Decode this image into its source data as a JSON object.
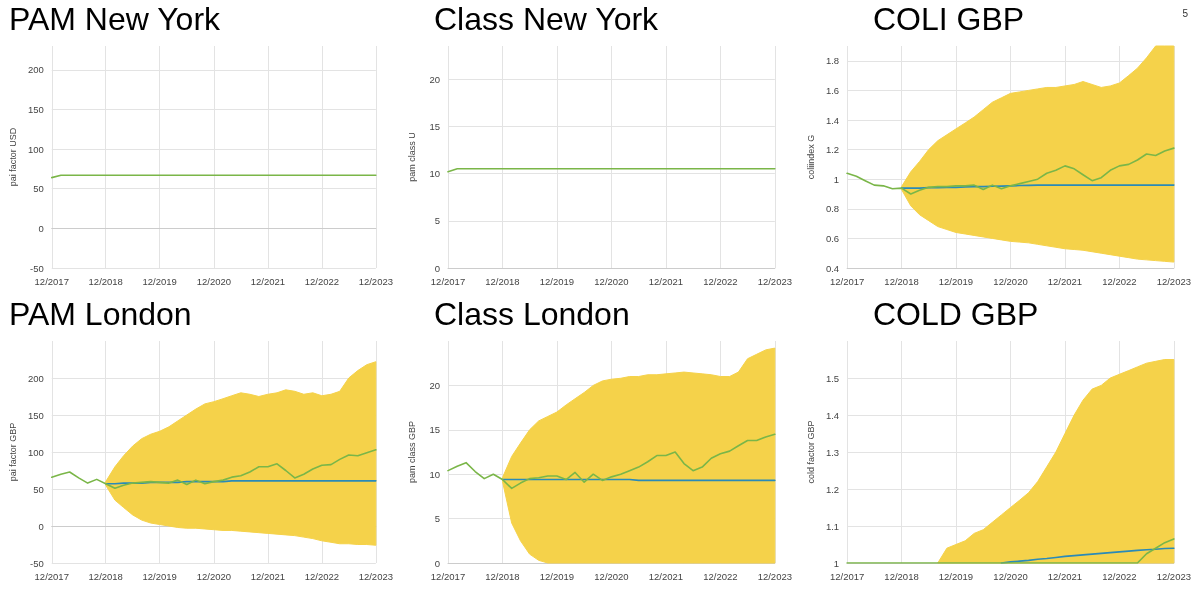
{
  "chart_data": [
    {
      "type": "line",
      "title": "PAM New York",
      "ylabel": "pai factor USD",
      "grid": true,
      "xlim": [
        "2017-12",
        "2023-12"
      ],
      "ylim": [
        -50,
        230
      ],
      "yticks": [
        -50,
        0,
        50,
        100,
        150,
        200
      ],
      "xticks": [
        {
          "value": "2017-12",
          "label": "12/2017"
        },
        {
          "value": "2018-12",
          "label": "12/2018"
        },
        {
          "value": "2019-12",
          "label": "12/2019"
        },
        {
          "value": "2020-12",
          "label": "12/2020"
        },
        {
          "value": "2021-12",
          "label": "12/2021"
        },
        {
          "value": "2022-12",
          "label": "12/2022"
        },
        {
          "value": "2023-12",
          "label": "12/2023"
        }
      ],
      "x": [
        "2017-12",
        "2018-02",
        "2018-04",
        "2018-06",
        "2018-08",
        "2018-10",
        "2018-12",
        "2019-02",
        "2019-04",
        "2019-06",
        "2019-08",
        "2019-10",
        "2019-12",
        "2020-02",
        "2020-04",
        "2020-06",
        "2020-08",
        "2020-10",
        "2020-12",
        "2021-02",
        "2021-04",
        "2021-06",
        "2021-08",
        "2021-10",
        "2021-12",
        "2022-02",
        "2022-04",
        "2022-06",
        "2022-08",
        "2022-10",
        "2022-12",
        "2023-02",
        "2023-04",
        "2023-06",
        "2023-08",
        "2023-10",
        "2023-12"
      ],
      "series": [
        {
          "color": "#7ab648",
          "values": [
            64,
            67,
            67,
            67,
            67,
            67,
            67,
            67,
            67,
            67,
            67,
            67,
            67,
            67,
            67,
            67,
            67,
            67,
            67,
            67,
            67,
            67,
            67,
            67,
            67,
            67,
            67,
            67,
            67,
            67,
            67,
            67,
            67,
            67,
            67,
            67,
            67
          ]
        }
      ]
    },
    {
      "type": "line",
      "title": "Class New York",
      "ylabel": "pam class U",
      "grid": true,
      "xlim": [
        "2017-12",
        "2023-12"
      ],
      "ylim": [
        0,
        23.5
      ],
      "yticks": [
        0,
        5,
        10,
        15,
        20
      ],
      "xticks": [
        {
          "value": "2017-12",
          "label": "12/2017"
        },
        {
          "value": "2018-12",
          "label": "12/2018"
        },
        {
          "value": "2019-12",
          "label": "12/2019"
        },
        {
          "value": "2020-12",
          "label": "12/2020"
        },
        {
          "value": "2021-12",
          "label": "12/2021"
        },
        {
          "value": "2022-12",
          "label": "12/2022"
        },
        {
          "value": "2023-12",
          "label": "12/2023"
        }
      ],
      "x": [
        "2017-12",
        "2018-02",
        "2018-04",
        "2018-06",
        "2018-08",
        "2018-10",
        "2018-12",
        "2019-02",
        "2019-04",
        "2019-06",
        "2019-08",
        "2019-10",
        "2019-12",
        "2020-02",
        "2020-04",
        "2020-06",
        "2020-08",
        "2020-10",
        "2020-12",
        "2021-02",
        "2021-04",
        "2021-06",
        "2021-08",
        "2021-10",
        "2021-12",
        "2022-02",
        "2022-04",
        "2022-06",
        "2022-08",
        "2022-10",
        "2022-12",
        "2023-02",
        "2023-04",
        "2023-06",
        "2023-08",
        "2023-10",
        "2023-12"
      ],
      "series": [
        {
          "color": "#7ab648",
          "values": [
            10.2,
            10.5,
            10.5,
            10.5,
            10.5,
            10.5,
            10.5,
            10.5,
            10.5,
            10.5,
            10.5,
            10.5,
            10.5,
            10.5,
            10.5,
            10.5,
            10.5,
            10.5,
            10.5,
            10.5,
            10.5,
            10.5,
            10.5,
            10.5,
            10.5,
            10.5,
            10.5,
            10.5,
            10.5,
            10.5,
            10.5,
            10.5,
            10.5,
            10.5,
            10.5,
            10.5,
            10.5
          ]
        }
      ]
    },
    {
      "type": "line",
      "title": "COLI GBP",
      "ylabel": "coliindex G",
      "annotations": [
        "5"
      ],
      "grid": true,
      "xlim": [
        "2017-12",
        "2023-12"
      ],
      "ylim": [
        0.4,
        1.9
      ],
      "yticks": [
        0.4,
        0.6,
        0.8,
        1,
        1.2,
        1.4,
        1.6,
        1.8
      ],
      "xticks": [
        {
          "value": "2017-12",
          "label": "12/2017"
        },
        {
          "value": "2018-12",
          "label": "12/2018"
        },
        {
          "value": "2019-12",
          "label": "12/2019"
        },
        {
          "value": "2020-12",
          "label": "12/2020"
        },
        {
          "value": "2021-12",
          "label": "12/2021"
        },
        {
          "value": "2022-12",
          "label": "12/2022"
        },
        {
          "value": "2023-12",
          "label": "12/2023"
        }
      ],
      "x": [
        "2017-12",
        "2018-02",
        "2018-04",
        "2018-06",
        "2018-08",
        "2018-10",
        "2018-12",
        "2019-02",
        "2019-04",
        "2019-06",
        "2019-08",
        "2019-10",
        "2019-12",
        "2020-02",
        "2020-04",
        "2020-06",
        "2020-08",
        "2020-10",
        "2020-12",
        "2021-02",
        "2021-04",
        "2021-06",
        "2021-08",
        "2021-10",
        "2021-12",
        "2022-02",
        "2022-04",
        "2022-06",
        "2022-08",
        "2022-10",
        "2022-12",
        "2023-02",
        "2023-04",
        "2023-06",
        "2023-08",
        "2023-10",
        "2023-12"
      ],
      "series": [
        {
          "color": "#2a8ab8",
          "values": [
            null,
            null,
            null,
            null,
            null,
            null,
            0.94,
            0.94,
            0.94,
            0.943,
            0.943,
            0.945,
            0.945,
            0.948,
            0.95,
            0.95,
            0.952,
            0.953,
            0.955,
            0.957,
            0.958,
            0.96,
            0.96,
            0.96,
            0.96,
            0.96,
            0.96,
            0.96,
            0.96,
            0.96,
            0.96,
            0.96,
            0.96,
            0.96,
            0.96,
            0.96,
            0.96
          ],
          "lower": [
            null,
            null,
            null,
            null,
            null,
            null,
            0.93,
            0.82,
            0.76,
            0.72,
            0.68,
            0.66,
            0.64,
            0.63,
            0.62,
            0.61,
            0.6,
            0.59,
            0.58,
            0.575,
            0.57,
            0.56,
            0.55,
            0.54,
            0.53,
            0.525,
            0.52,
            0.51,
            0.5,
            0.49,
            0.48,
            0.47,
            0.46,
            0.455,
            0.45,
            0.445,
            0.44
          ],
          "upper": [
            null,
            null,
            null,
            null,
            null,
            null,
            0.95,
            1.05,
            1.12,
            1.2,
            1.26,
            1.3,
            1.34,
            1.38,
            1.42,
            1.47,
            1.52,
            1.55,
            1.58,
            1.59,
            1.6,
            1.61,
            1.62,
            1.62,
            1.63,
            1.64,
            1.66,
            1.64,
            1.62,
            1.63,
            1.65,
            1.7,
            1.75,
            1.82,
            1.9,
            1.9,
            1.9
          ]
        },
        {
          "color": "#7ab648",
          "values": [
            1.04,
            1.02,
            0.99,
            0.96,
            0.955,
            0.935,
            0.94,
            0.9,
            0.925,
            0.945,
            0.95,
            0.95,
            0.955,
            0.955,
            0.96,
            0.93,
            0.96,
            0.935,
            0.955,
            0.97,
            0.985,
            1.0,
            1.04,
            1.06,
            1.09,
            1.07,
            1.03,
            0.99,
            1.01,
            1.06,
            1.09,
            1.1,
            1.13,
            1.17,
            1.16,
            1.19,
            1.21
          ]
        }
      ]
    },
    {
      "type": "line",
      "title": "PAM London",
      "ylabel": "pai factor GBP",
      "grid": true,
      "xlim": [
        "2017-12",
        "2023-12"
      ],
      "ylim": [
        -50,
        250
      ],
      "yticks": [
        -50,
        0,
        50,
        100,
        150,
        200
      ],
      "xticks": [
        {
          "value": "2017-12",
          "label": "12/2017"
        },
        {
          "value": "2018-12",
          "label": "12/2018"
        },
        {
          "value": "2019-12",
          "label": "12/2019"
        },
        {
          "value": "2020-12",
          "label": "12/2020"
        },
        {
          "value": "2021-12",
          "label": "12/2021"
        },
        {
          "value": "2022-12",
          "label": "12/2022"
        },
        {
          "value": "2023-12",
          "label": "12/2023"
        }
      ],
      "x": [
        "2017-12",
        "2018-02",
        "2018-04",
        "2018-06",
        "2018-08",
        "2018-10",
        "2018-12",
        "2019-02",
        "2019-04",
        "2019-06",
        "2019-08",
        "2019-10",
        "2019-12",
        "2020-02",
        "2020-04",
        "2020-06",
        "2020-08",
        "2020-10",
        "2020-12",
        "2021-02",
        "2021-04",
        "2021-06",
        "2021-08",
        "2021-10",
        "2021-12",
        "2022-02",
        "2022-04",
        "2022-06",
        "2022-08",
        "2022-10",
        "2022-12",
        "2023-02",
        "2023-04",
        "2023-06",
        "2023-08",
        "2023-10",
        "2023-12"
      ],
      "series": [
        {
          "color": "#2a8ab8",
          "values": [
            null,
            null,
            null,
            null,
            null,
            null,
            57,
            57,
            58,
            58,
            58,
            59,
            59,
            59,
            59,
            60,
            60,
            60,
            60,
            60,
            61,
            61,
            61,
            61,
            61,
            61,
            61,
            61,
            61,
            61,
            61,
            61,
            61,
            61,
            61,
            61,
            61
          ],
          "lower": [
            null,
            null,
            null,
            null,
            null,
            null,
            55,
            35,
            25,
            15,
            8,
            4,
            2,
            0,
            -2,
            -3,
            -3,
            -4,
            -5,
            -6,
            -6,
            -7,
            -8,
            -9,
            -10,
            -11,
            -12,
            -13,
            -15,
            -17,
            -20,
            -22,
            -24,
            -24,
            -25,
            -25,
            -26
          ],
          "upper": [
            null,
            null,
            null,
            null,
            null,
            null,
            60,
            80,
            95,
            108,
            118,
            124,
            128,
            134,
            142,
            150,
            158,
            165,
            168,
            172,
            176,
            180,
            178,
            175,
            178,
            180,
            184,
            182,
            178,
            180,
            176,
            178,
            182,
            200,
            210,
            218,
            222
          ]
        },
        {
          "color": "#7ab648",
          "values": [
            66,
            70,
            73,
            65,
            58,
            63,
            57,
            51,
            55,
            58,
            59,
            60,
            59,
            58,
            62,
            56,
            62,
            57,
            60,
            62,
            66,
            68,
            73,
            80,
            80,
            84,
            75,
            65,
            70,
            77,
            82,
            83,
            90,
            96,
            95,
            99,
            103
          ]
        }
      ]
    },
    {
      "type": "line",
      "title": "Class London",
      "ylabel": "pam class GBP",
      "grid": true,
      "xlim": [
        "2017-12",
        "2023-12"
      ],
      "ylim": [
        0,
        25
      ],
      "yticks": [
        0,
        5,
        10,
        15,
        20
      ],
      "xticks": [
        {
          "value": "2017-12",
          "label": "12/2017"
        },
        {
          "value": "2018-12",
          "label": "12/2018"
        },
        {
          "value": "2019-12",
          "label": "12/2019"
        },
        {
          "value": "2020-12",
          "label": "12/2020"
        },
        {
          "value": "2021-12",
          "label": "12/2021"
        },
        {
          "value": "2022-12",
          "label": "12/2022"
        },
        {
          "value": "2023-12",
          "label": "12/2023"
        }
      ],
      "x": [
        "2017-12",
        "2018-02",
        "2018-04",
        "2018-06",
        "2018-08",
        "2018-10",
        "2018-12",
        "2019-02",
        "2019-04",
        "2019-06",
        "2019-08",
        "2019-10",
        "2019-12",
        "2020-02",
        "2020-04",
        "2020-06",
        "2020-08",
        "2020-10",
        "2020-12",
        "2021-02",
        "2021-04",
        "2021-06",
        "2021-08",
        "2021-10",
        "2021-12",
        "2022-02",
        "2022-04",
        "2022-06",
        "2022-08",
        "2022-10",
        "2022-12",
        "2023-02",
        "2023-04",
        "2023-06",
        "2023-08",
        "2023-10",
        "2023-12"
      ],
      "series": [
        {
          "color": "#2a8ab8",
          "values": [
            null,
            null,
            null,
            null,
            null,
            null,
            9.4,
            9.4,
            9.4,
            9.4,
            9.4,
            9.4,
            9.4,
            9.4,
            9.4,
            9.4,
            9.4,
            9.4,
            9.4,
            9.4,
            9.4,
            9.3,
            9.3,
            9.3,
            9.3,
            9.3,
            9.3,
            9.3,
            9.3,
            9.3,
            9.3,
            9.3,
            9.3,
            9.3,
            9.3,
            9.3,
            9.3
          ],
          "lower": [
            null,
            null,
            null,
            null,
            null,
            null,
            9.2,
            4.5,
            2.5,
            1,
            0.3,
            0,
            0,
            0,
            0,
            0,
            0,
            0,
            0,
            0,
            0,
            0,
            0,
            0,
            0,
            0,
            0,
            0,
            0,
            0,
            0,
            0,
            0,
            0,
            0,
            0,
            0
          ],
          "upper": [
            null,
            null,
            null,
            null,
            null,
            null,
            9.6,
            12,
            13.5,
            15,
            16,
            16.5,
            17,
            17.8,
            18.5,
            19.2,
            20,
            20.5,
            20.7,
            20.8,
            21,
            21,
            21.2,
            21.2,
            21.3,
            21.4,
            21.5,
            21.4,
            21.3,
            21.2,
            21,
            21,
            21.5,
            23,
            23.5,
            24,
            24.2
          ]
        },
        {
          "color": "#7ab648",
          "values": [
            10.4,
            10.9,
            11.3,
            10.3,
            9.5,
            10.0,
            9.4,
            8.4,
            9.0,
            9.5,
            9.6,
            9.8,
            9.8,
            9.4,
            10.2,
            9.1,
            10.0,
            9.3,
            9.7,
            10.0,
            10.4,
            10.8,
            11.4,
            12.1,
            12.1,
            12.5,
            11.2,
            10.4,
            10.8,
            11.8,
            12.3,
            12.6,
            13.2,
            13.8,
            13.8,
            14.2,
            14.5
          ]
        }
      ]
    },
    {
      "type": "line",
      "title": "COLD GBP",
      "ylabel": "cold factor GBP",
      "grid": true,
      "xlim": [
        "2017-12",
        "2023-12"
      ],
      "ylim": [
        1,
        1.6
      ],
      "yticks": [
        1,
        1.1,
        1.2,
        1.3,
        1.4,
        1.5
      ],
      "xticks": [
        {
          "value": "2017-12",
          "label": "12/2017"
        },
        {
          "value": "2018-12",
          "label": "12/2018"
        },
        {
          "value": "2019-12",
          "label": "12/2019"
        },
        {
          "value": "2020-12",
          "label": "12/2020"
        },
        {
          "value": "2021-12",
          "label": "12/2021"
        },
        {
          "value": "2022-12",
          "label": "12/2022"
        },
        {
          "value": "2023-12",
          "label": "12/2023"
        }
      ],
      "x": [
        "2017-12",
        "2018-02",
        "2018-04",
        "2018-06",
        "2018-08",
        "2018-10",
        "2018-12",
        "2019-02",
        "2019-04",
        "2019-06",
        "2019-08",
        "2019-10",
        "2019-12",
        "2020-02",
        "2020-04",
        "2020-06",
        "2020-08",
        "2020-10",
        "2020-12",
        "2021-02",
        "2021-04",
        "2021-06",
        "2021-08",
        "2021-10",
        "2021-12",
        "2022-02",
        "2022-04",
        "2022-06",
        "2022-08",
        "2022-10",
        "2022-12",
        "2023-02",
        "2023-04",
        "2023-06",
        "2023-08",
        "2023-10",
        "2023-12"
      ],
      "series": [
        {
          "color": "#2a8ab8",
          "values": [
            null,
            null,
            null,
            null,
            null,
            null,
            null,
            null,
            null,
            null,
            null,
            null,
            null,
            null,
            null,
            null,
            null,
            1,
            1.003,
            1.005,
            1.007,
            1.01,
            1.012,
            1.015,
            1.018,
            1.02,
            1.022,
            1.024,
            1.026,
            1.028,
            1.03,
            1.032,
            1.034,
            1.036,
            1.037,
            1.039,
            1.04
          ],
          "lower": [
            null,
            null,
            null,
            null,
            null,
            null,
            null,
            null,
            null,
            null,
            1,
            1,
            1,
            1,
            1,
            1,
            1,
            1,
            1,
            1,
            1,
            1,
            1,
            1,
            1,
            1,
            1,
            1,
            1,
            1,
            1,
            1,
            1,
            1,
            1,
            1,
            1
          ],
          "upper": [
            null,
            null,
            null,
            null,
            null,
            null,
            null,
            null,
            null,
            null,
            1,
            1.04,
            1.05,
            1.06,
            1.08,
            1.09,
            1.11,
            1.13,
            1.15,
            1.17,
            1.19,
            1.22,
            1.26,
            1.3,
            1.35,
            1.4,
            1.44,
            1.47,
            1.48,
            1.5,
            1.51,
            1.52,
            1.53,
            1.54,
            1.545,
            1.55,
            1.55
          ]
        },
        {
          "color": "#7ab648",
          "values": [
            1,
            1,
            1,
            1,
            1,
            1,
            1,
            1,
            1,
            1,
            1,
            1,
            1,
            1,
            1,
            1,
            1,
            1,
            1,
            1,
            1,
            1,
            1,
            1,
            1,
            1,
            1,
            1,
            1,
            1,
            1,
            1,
            1,
            1.025,
            1.04,
            1.055,
            1.065
          ]
        }
      ]
    }
  ]
}
